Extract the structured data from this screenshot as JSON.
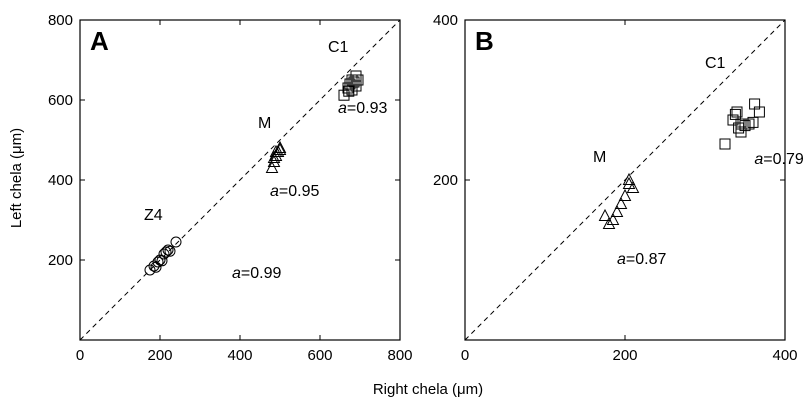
{
  "figure": {
    "xlabel": "Right chela (μm)",
    "ylabel": "Left chela (μm)"
  },
  "chart_data": [
    {
      "type": "scatter",
      "panel_label": "A",
      "xlim": [
        0,
        800
      ],
      "ylim": [
        0,
        800
      ],
      "xticks": [
        0,
        200,
        400,
        600,
        800
      ],
      "yticks": [
        200,
        400,
        600,
        800
      ],
      "xtick_labels": [
        "0",
        "200",
        "400",
        "600",
        "800"
      ],
      "ytick_labels": [
        "200",
        "400",
        "600",
        "800"
      ],
      "reference_line": {
        "style": "dashed",
        "from": [
          0,
          0
        ],
        "to": [
          800,
          800
        ]
      },
      "series": [
        {
          "name": "Z4",
          "marker": "circle",
          "points": [
            [
              175,
              175
            ],
            [
              185,
              185
            ],
            [
              190,
              182
            ],
            [
              195,
              195
            ],
            [
              200,
              200
            ],
            [
              205,
              198
            ],
            [
              210,
              215
            ],
            [
              215,
              220
            ],
            [
              220,
              225
            ],
            [
              225,
              222
            ],
            [
              240,
              245
            ]
          ],
          "annotation": {
            "prefix": "a",
            "text": "=0.99",
            "value": 0.99
          }
        },
        {
          "name": "M",
          "marker": "triangle",
          "points": [
            [
              480,
              430
            ],
            [
              485,
              445
            ],
            [
              490,
              460
            ],
            [
              495,
              470
            ],
            [
              500,
              480
            ],
            [
              500,
              475
            ],
            [
              490,
              470
            ],
            [
              485,
              455
            ]
          ],
          "annotation": {
            "prefix": "a",
            "text": "=0.95",
            "value": 0.95
          }
        },
        {
          "name": "C1",
          "marker": "square",
          "points": [
            [
              660,
              612
            ],
            [
              670,
              630
            ],
            [
              675,
              640
            ],
            [
              680,
              650
            ],
            [
              685,
              645
            ],
            [
              690,
              635
            ],
            [
              695,
              650
            ],
            [
              690,
              660
            ],
            [
              680,
              625
            ],
            [
              672,
              622
            ]
          ],
          "annotation": {
            "prefix": "a",
            "text": "=0.93",
            "value": 0.93
          }
        }
      ]
    },
    {
      "type": "scatter",
      "panel_label": "B",
      "xlim": [
        0,
        400
      ],
      "ylim": [
        0,
        400
      ],
      "xticks": [
        0,
        200,
        400
      ],
      "yticks": [
        200,
        400
      ],
      "xtick_labels": [
        "0",
        "200",
        "400"
      ],
      "ytick_labels": [
        "200",
        "400"
      ],
      "reference_line": {
        "style": "dashed",
        "from": [
          0,
          0
        ],
        "to": [
          400,
          400
        ]
      },
      "series": [
        {
          "name": "M",
          "marker": "triangle",
          "points": [
            [
              175,
              155
            ],
            [
              180,
              145
            ],
            [
              185,
              150
            ],
            [
              190,
              160
            ],
            [
              195,
              170
            ],
            [
              200,
              180
            ],
            [
              205,
              195
            ],
            [
              210,
              190
            ],
            [
              205,
              200
            ]
          ],
          "annotation": {
            "prefix": "a",
            "text": "=0.87",
            "value": 0.87
          }
        },
        {
          "name": "C1",
          "marker": "square",
          "points": [
            [
              325,
              245
            ],
            [
              335,
              275
            ],
            [
              338,
              282
            ],
            [
              340,
              285
            ],
            [
              342,
              265
            ],
            [
              345,
              270
            ],
            [
              350,
              268
            ],
            [
              355,
              270
            ],
            [
              360,
              272
            ],
            [
              362,
              295
            ],
            [
              368,
              285
            ],
            [
              345,
              260
            ]
          ],
          "annotation": {
            "prefix": "a",
            "text": "=0.79",
            "value": 0.79
          }
        }
      ]
    }
  ]
}
